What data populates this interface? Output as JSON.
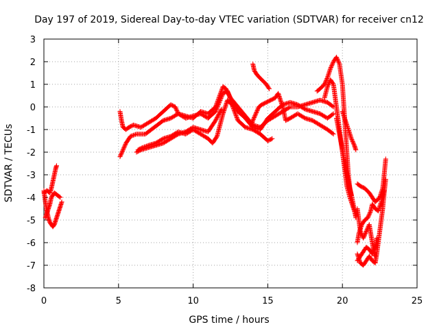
{
  "chart_data": {
    "type": "scatter",
    "title": "Day 197 of 2019, Sidereal Day-to-day VTEC variation (SDTVAR) for receiver cn12",
    "xlabel": "GPS time / hours",
    "ylabel": "SDTVAR / TECUs",
    "xlim": [
      0,
      25
    ],
    "ylim": [
      -8,
      3
    ],
    "xticks": [
      0,
      5,
      10,
      15,
      20,
      25
    ],
    "yticks": [
      -8,
      -7,
      -6,
      -5,
      -4,
      -3,
      -2,
      -1,
      0,
      1,
      2,
      3
    ],
    "grid": "dotted",
    "marker": "+",
    "series": [
      {
        "color": "#ff0000",
        "segments": [
          [
            [
              0.0,
              -3.7
            ],
            [
              0.1,
              -4.2
            ],
            [
              0.2,
              -4.6
            ],
            [
              0.3,
              -4.9
            ],
            [
              0.4,
              -5.1
            ],
            [
              0.5,
              -5.2
            ],
            [
              0.6,
              -5.3
            ],
            [
              0.7,
              -5.2
            ],
            [
              0.8,
              -5.0
            ],
            [
              0.9,
              -4.8
            ],
            [
              1.0,
              -4.6
            ],
            [
              1.1,
              -4.4
            ],
            [
              1.2,
              -4.2
            ]
          ],
          [
            [
              0.0,
              -3.8
            ],
            [
              0.2,
              -3.7
            ],
            [
              0.4,
              -3.8
            ],
            [
              0.5,
              -3.6
            ],
            [
              0.6,
              -3.3
            ],
            [
              0.7,
              -3.0
            ],
            [
              0.8,
              -2.7
            ],
            [
              0.85,
              -2.6
            ]
          ],
          [
            [
              0.1,
              -4.9
            ],
            [
              0.2,
              -4.7
            ],
            [
              0.3,
              -4.5
            ],
            [
              0.4,
              -4.3
            ],
            [
              0.5,
              -4.0
            ],
            [
              0.6,
              -3.9
            ],
            [
              0.7,
              -3.8
            ],
            [
              0.9,
              -3.9
            ],
            [
              1.1,
              -4.0
            ]
          ],
          [
            [
              5.1,
              -0.2
            ],
            [
              5.2,
              -0.6
            ],
            [
              5.3,
              -0.9
            ],
            [
              5.5,
              -1.0
            ],
            [
              5.7,
              -0.9
            ],
            [
              6.0,
              -0.8
            ],
            [
              6.5,
              -0.9
            ],
            [
              7.0,
              -0.7
            ],
            [
              7.5,
              -0.5
            ],
            [
              8.0,
              -0.2
            ],
            [
              8.5,
              0.1
            ],
            [
              8.8,
              0.0
            ],
            [
              9.0,
              -0.3
            ],
            [
              9.5,
              -0.4
            ],
            [
              10.0,
              -0.5
            ],
            [
              10.5,
              -0.2
            ],
            [
              11.0,
              -0.3
            ],
            [
              11.5,
              0.0
            ],
            [
              12.0,
              0.9
            ],
            [
              12.2,
              0.8
            ],
            [
              12.5,
              0.4
            ],
            [
              13.0,
              0.0
            ],
            [
              13.5,
              -0.4
            ],
            [
              14.0,
              -0.8
            ],
            [
              14.5,
              -0.9
            ],
            [
              15.0,
              -0.6
            ],
            [
              15.5,
              -0.4
            ],
            [
              16.0,
              -0.2
            ],
            [
              16.5,
              0.0
            ],
            [
              17.0,
              0.0
            ],
            [
              17.5,
              0.1
            ],
            [
              18.0,
              0.2
            ],
            [
              18.5,
              0.3
            ],
            [
              19.0,
              0.2
            ],
            [
              19.4,
              0.0
            ]
          ],
          [
            [
              5.1,
              -2.2
            ],
            [
              5.3,
              -1.9
            ],
            [
              5.5,
              -1.6
            ],
            [
              5.8,
              -1.3
            ],
            [
              6.2,
              -1.2
            ],
            [
              6.8,
              -1.2
            ],
            [
              7.2,
              -1.0
            ],
            [
              7.6,
              -0.8
            ],
            [
              8.0,
              -0.6
            ],
            [
              8.5,
              -0.5
            ],
            [
              9.0,
              -0.3
            ],
            [
              9.5,
              -0.5
            ],
            [
              10.0,
              -0.4
            ],
            [
              10.5,
              -0.3
            ],
            [
              11.0,
              -0.5
            ],
            [
              11.5,
              -0.2
            ],
            [
              12.0,
              0.6
            ],
            [
              12.3,
              0.7
            ],
            [
              12.6,
              0.2
            ],
            [
              13.0,
              -0.2
            ],
            [
              13.5,
              -0.5
            ],
            [
              14.0,
              -0.9
            ],
            [
              14.5,
              -1.0
            ],
            [
              15.0,
              -0.5
            ],
            [
              15.5,
              -0.2
            ],
            [
              16.0,
              0.1
            ],
            [
              16.5,
              0.2
            ],
            [
              17.0,
              0.1
            ],
            [
              17.5,
              -0.1
            ],
            [
              18.0,
              -0.2
            ],
            [
              18.5,
              -0.3
            ],
            [
              19.0,
              -0.5
            ],
            [
              19.4,
              -0.3
            ]
          ],
          [
            [
              6.3,
              -1.9
            ],
            [
              6.6,
              -1.8
            ],
            [
              7.0,
              -1.7
            ],
            [
              7.5,
              -1.6
            ],
            [
              8.0,
              -1.4
            ],
            [
              8.5,
              -1.3
            ],
            [
              9.0,
              -1.1
            ],
            [
              9.5,
              -1.2
            ],
            [
              10.0,
              -1.0
            ],
            [
              10.5,
              -1.2
            ],
            [
              11.0,
              -1.4
            ],
            [
              11.3,
              -1.6
            ],
            [
              11.6,
              -1.3
            ],
            [
              12.0,
              -0.3
            ],
            [
              12.3,
              0.3
            ],
            [
              12.6,
              0.1
            ],
            [
              13.0,
              -0.6
            ],
            [
              13.5,
              -0.9
            ],
            [
              14.0,
              -1.0
            ],
            [
              14.5,
              -1.2
            ],
            [
              15.0,
              -1.5
            ],
            [
              15.3,
              -1.4
            ]
          ],
          [
            [
              6.2,
              -2.0
            ],
            [
              6.5,
              -1.9
            ],
            [
              7.0,
              -1.8
            ],
            [
              7.5,
              -1.7
            ],
            [
              8.0,
              -1.6
            ],
            [
              8.5,
              -1.4
            ],
            [
              9.0,
              -1.2
            ],
            [
              9.5,
              -1.1
            ],
            [
              10.0,
              -0.9
            ],
            [
              10.5,
              -1.0
            ],
            [
              11.0,
              -1.1
            ],
            [
              11.5,
              -0.6
            ],
            [
              11.9,
              -0.1
            ]
          ],
          [
            [
              13.9,
              -0.8
            ],
            [
              14.0,
              -0.6
            ],
            [
              14.2,
              -0.3
            ],
            [
              14.4,
              0.0
            ],
            [
              14.6,
              0.1
            ],
            [
              14.9,
              0.2
            ],
            [
              15.2,
              0.3
            ],
            [
              15.5,
              0.4
            ],
            [
              15.7,
              0.6
            ],
            [
              16.0,
              0.0
            ],
            [
              16.2,
              -0.6
            ],
            [
              16.5,
              -0.5
            ],
            [
              17.0,
              -0.3
            ],
            [
              17.5,
              -0.5
            ],
            [
              18.0,
              -0.6
            ],
            [
              18.5,
              -0.8
            ],
            [
              19.0,
              -1.0
            ],
            [
              19.4,
              -1.2
            ]
          ],
          [
            [
              14.0,
              1.9
            ],
            [
              14.1,
              1.6
            ],
            [
              14.3,
              1.4
            ],
            [
              14.6,
              1.2
            ],
            [
              14.9,
              1.0
            ],
            [
              15.1,
              0.8
            ]
          ],
          [
            [
              18.3,
              0.7
            ],
            [
              18.5,
              0.8
            ],
            [
              18.8,
              1.0
            ],
            [
              19.0,
              1.3
            ],
            [
              19.2,
              1.7
            ],
            [
              19.4,
              2.0
            ],
            [
              19.6,
              2.2
            ],
            [
              19.8,
              1.9
            ],
            [
              20.0,
              1.0
            ],
            [
              20.1,
              0.0
            ],
            [
              20.2,
              -1.0
            ],
            [
              20.3,
              -2.0
            ],
            [
              20.4,
              -3.0
            ],
            [
              20.5,
              -3.6
            ],
            [
              20.7,
              -4.2
            ],
            [
              20.9,
              -4.9
            ]
          ],
          [
            [
              18.8,
              0.4
            ],
            [
              19.0,
              0.9
            ],
            [
              19.2,
              1.2
            ],
            [
              19.4,
              1.0
            ],
            [
              19.5,
              0.5
            ],
            [
              19.6,
              0.0
            ],
            [
              19.7,
              -0.5
            ],
            [
              19.8,
              -1.0
            ],
            [
              19.9,
              -1.5
            ],
            [
              20.0,
              -2.0
            ],
            [
              20.1,
              -2.5
            ],
            [
              20.2,
              -3.0
            ],
            [
              20.3,
              -3.5
            ],
            [
              20.5,
              -4.0
            ],
            [
              20.7,
              -4.4
            ],
            [
              20.9,
              -4.8
            ]
          ],
          [
            [
              20.0,
              -0.2
            ],
            [
              20.2,
              -0.6
            ],
            [
              20.4,
              -1.0
            ],
            [
              20.6,
              -1.4
            ],
            [
              20.8,
              -1.7
            ],
            [
              20.9,
              -1.9
            ]
          ],
          [
            [
              19.6,
              -0.5
            ],
            [
              19.8,
              -1.2
            ],
            [
              20.0,
              -1.9
            ],
            [
              20.2,
              -2.6
            ],
            [
              20.4,
              -3.3
            ],
            [
              20.6,
              -3.9
            ]
          ],
          [
            [
              21.0,
              -3.4
            ],
            [
              21.2,
              -3.5
            ],
            [
              21.5,
              -3.6
            ],
            [
              21.8,
              -3.8
            ],
            [
              22.0,
              -4.0
            ],
            [
              22.2,
              -4.2
            ],
            [
              22.5,
              -4.0
            ],
            [
              22.7,
              -3.6
            ],
            [
              22.8,
              -3.0
            ],
            [
              22.9,
              -2.3
            ]
          ],
          [
            [
              21.0,
              -6.5
            ],
            [
              21.2,
              -6.9
            ],
            [
              21.4,
              -7.0
            ],
            [
              21.6,
              -6.8
            ],
            [
              21.8,
              -6.6
            ],
            [
              22.0,
              -6.8
            ],
            [
              22.2,
              -6.9
            ],
            [
              22.3,
              -6.5
            ],
            [
              22.4,
              -6.0
            ],
            [
              22.5,
              -5.5
            ],
            [
              22.6,
              -5.0
            ],
            [
              22.7,
              -4.5
            ],
            [
              22.8,
              -3.8
            ],
            [
              22.9,
              -3.2
            ]
          ],
          [
            [
              21.0,
              -4.5
            ],
            [
              21.1,
              -5.0
            ],
            [
              21.2,
              -5.5
            ],
            [
              21.4,
              -5.8
            ],
            [
              21.6,
              -5.5
            ],
            [
              21.8,
              -5.2
            ],
            [
              21.9,
              -5.6
            ],
            [
              22.0,
              -6.0
            ],
            [
              22.1,
              -6.4
            ],
            [
              22.2,
              -6.6
            ]
          ],
          [
            [
              21.0,
              -6.0
            ],
            [
              21.1,
              -5.6
            ],
            [
              21.3,
              -5.2
            ],
            [
              21.5,
              -5.0
            ],
            [
              21.7,
              -4.9
            ],
            [
              21.9,
              -4.6
            ],
            [
              22.0,
              -4.3
            ],
            [
              22.2,
              -4.5
            ],
            [
              22.4,
              -4.6
            ],
            [
              22.6,
              -4.2
            ],
            [
              22.8,
              -3.7
            ]
          ],
          [
            [
              21.0,
              -6.8
            ],
            [
              21.2,
              -6.6
            ],
            [
              21.4,
              -6.4
            ],
            [
              21.6,
              -6.2
            ],
            [
              21.8,
              -6.3
            ],
            [
              22.0,
              -6.5
            ],
            [
              22.2,
              -6.2
            ],
            [
              22.3,
              -5.8
            ]
          ]
        ]
      }
    ]
  }
}
